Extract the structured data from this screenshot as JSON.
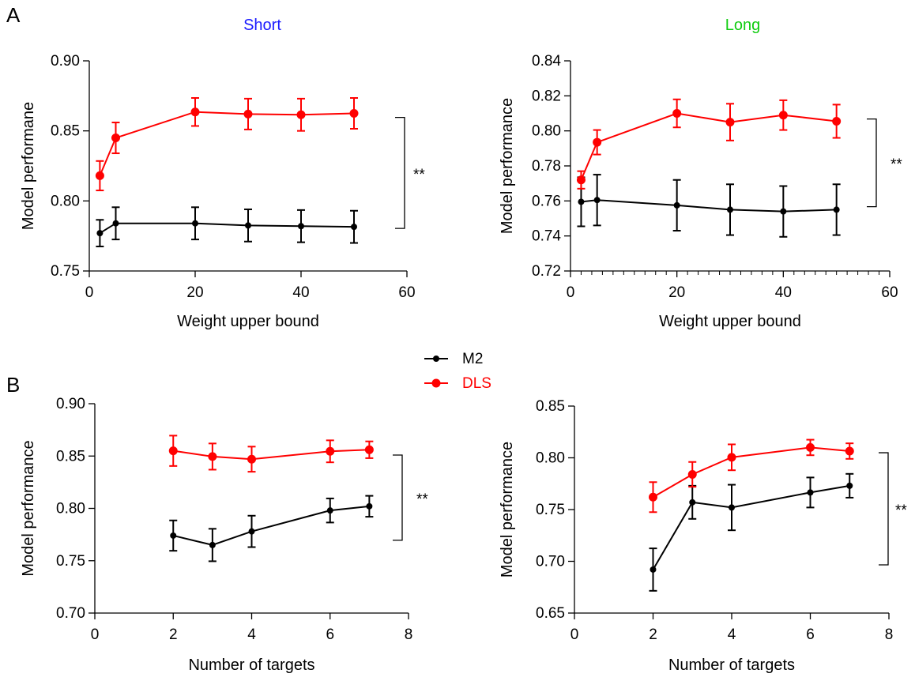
{
  "panel_letters": {
    "a": "A",
    "b": "B"
  },
  "column_titles": {
    "short": "Short",
    "long": "Long"
  },
  "colors": {
    "short_title": "#1a1aff",
    "long_title": "#11cc11",
    "m2": "#000000",
    "dls": "#ff0000"
  },
  "legend": [
    {
      "label": "M2",
      "color": "#000000"
    },
    {
      "label": "DLS",
      "color": "#ff0000"
    }
  ],
  "chart_data": [
    {
      "id": "A-short",
      "type": "line",
      "xlabel": "Weight upper bound",
      "ylabel": "Model performane",
      "xlim": [
        0,
        60
      ],
      "ylim": [
        0.75,
        0.9
      ],
      "xticks": [
        "0",
        "20",
        "40",
        "60"
      ],
      "yticks": [
        "0.75",
        "0.80",
        "0.85",
        "0.90"
      ],
      "x_minor_ticks": false,
      "significance": "**",
      "x": [
        2,
        5,
        20,
        30,
        40,
        50
      ],
      "series": [
        {
          "name": "M2",
          "values": [
            0.777,
            0.784,
            0.784,
            0.7825,
            0.782,
            0.7815
          ],
          "errors": [
            0.0095,
            0.0115,
            0.0115,
            0.0115,
            0.0115,
            0.0115
          ]
        },
        {
          "name": "DLS",
          "values": [
            0.818,
            0.845,
            0.8635,
            0.862,
            0.8615,
            0.8625
          ],
          "errors": [
            0.0105,
            0.011,
            0.01,
            0.011,
            0.0115,
            0.011
          ]
        }
      ]
    },
    {
      "id": "A-long",
      "type": "line",
      "xlabel": "Weight upper bound",
      "ylabel": "Model performance",
      "xlim": [
        0,
        60
      ],
      "ylim": [
        0.72,
        0.84
      ],
      "xticks": [
        "0",
        "20",
        "40",
        "60"
      ],
      "yticks": [
        "0.72",
        "0.74",
        "0.76",
        "0.78",
        "0.80",
        "0.82",
        "0.84"
      ],
      "x_minor_ticks": true,
      "significance": "**",
      "x": [
        2,
        5,
        20,
        30,
        40,
        50
      ],
      "series": [
        {
          "name": "M2",
          "values": [
            0.7595,
            0.7605,
            0.7575,
            0.755,
            0.754,
            0.755
          ],
          "errors": [
            0.014,
            0.0145,
            0.0145,
            0.0145,
            0.0145,
            0.0145
          ]
        },
        {
          "name": "DLS",
          "values": [
            0.772,
            0.7935,
            0.81,
            0.805,
            0.809,
            0.8055
          ],
          "errors": [
            0.005,
            0.007,
            0.008,
            0.0105,
            0.0085,
            0.0095
          ]
        }
      ]
    },
    {
      "id": "B-short",
      "type": "line",
      "xlabel": "Number of targets",
      "ylabel": "Model performance",
      "xlim": [
        0,
        8
      ],
      "ylim": [
        0.7,
        0.9
      ],
      "xticks": [
        "0",
        "2",
        "4",
        "6",
        "8"
      ],
      "yticks": [
        "0.70",
        "0.75",
        "0.80",
        "0.85",
        "0.90"
      ],
      "x_minor_ticks": false,
      "significance": "**",
      "x": [
        2,
        3,
        4,
        6,
        7
      ],
      "series": [
        {
          "name": "M2",
          "values": [
            0.774,
            0.765,
            0.778,
            0.798,
            0.802
          ],
          "errors": [
            0.0145,
            0.0155,
            0.015,
            0.0115,
            0.01
          ]
        },
        {
          "name": "DLS",
          "values": [
            0.855,
            0.8495,
            0.847,
            0.8545,
            0.856
          ],
          "errors": [
            0.0145,
            0.0125,
            0.012,
            0.0105,
            0.008
          ]
        }
      ]
    },
    {
      "id": "B-long",
      "type": "line",
      "xlabel": "Number of targets",
      "ylabel": "Model performance",
      "xlim": [
        0,
        8
      ],
      "ylim": [
        0.65,
        0.85
      ],
      "xticks": [
        "0",
        "2",
        "4",
        "6",
        "8"
      ],
      "yticks": [
        "0.65",
        "0.70",
        "0.75",
        "0.80",
        "0.85"
      ],
      "x_minor_ticks": false,
      "significance": "**",
      "x": [
        2,
        3,
        4,
        6,
        7
      ],
      "series": [
        {
          "name": "M2",
          "values": [
            0.692,
            0.757,
            0.752,
            0.7665,
            0.773
          ],
          "errors": [
            0.0205,
            0.016,
            0.022,
            0.0145,
            0.0115
          ]
        },
        {
          "name": "DLS",
          "values": [
            0.762,
            0.784,
            0.8005,
            0.81,
            0.8065
          ],
          "errors": [
            0.0145,
            0.012,
            0.0125,
            0.0075,
            0.0075
          ]
        }
      ]
    }
  ]
}
